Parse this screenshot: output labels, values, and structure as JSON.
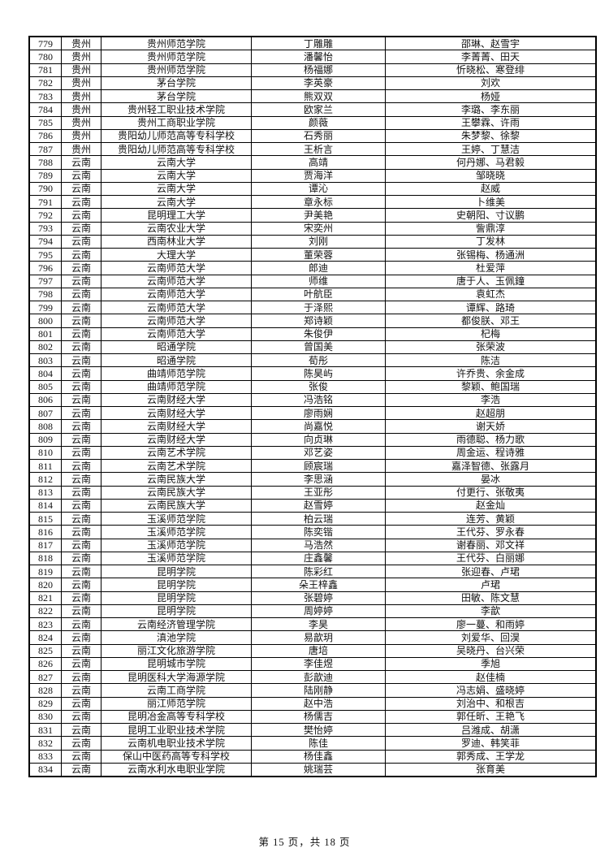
{
  "footer": {
    "text": "第 15 页，共 18 页"
  },
  "table": {
    "rows": [
      [
        "779",
        "贵州",
        "贵州师范学院",
        "丁雕雕",
        "邵琳、赵雪宇"
      ],
      [
        "780",
        "贵州",
        "贵州师范学院",
        "潘馨怡",
        "李菁菁、田天"
      ],
      [
        "781",
        "贵州",
        "贵州师范学院",
        "杨福娜",
        "忻晓松、寒登绯"
      ],
      [
        "782",
        "贵州",
        "茅台学院",
        "李英豪",
        "刘欢"
      ],
      [
        "783",
        "贵州",
        "茅台学院",
        "熊双双",
        "杨娅"
      ],
      [
        "784",
        "贵州",
        "贵州轻工职业技术学院",
        "欧家兰",
        "李璐、李东丽"
      ],
      [
        "785",
        "贵州",
        "贵州工商职业学院",
        "颜薇",
        "王攀霖、许雨"
      ],
      [
        "786",
        "贵州",
        "贵阳幼儿师范高等专科学校",
        "石秀丽",
        "朱梦黎、徐黎"
      ],
      [
        "787",
        "贵州",
        "贵阳幼儿师范高等专科学校",
        "王析言",
        "王婷、丁慧洁"
      ],
      [
        "788",
        "云南",
        "云南大学",
        "高靖",
        "何丹娜、马君毅"
      ],
      [
        "789",
        "云南",
        "云南大学",
        "贾海洋",
        "邹晓晓"
      ],
      [
        "790",
        "云南",
        "云南大学",
        "谭沁",
        "赵威"
      ],
      [
        "791",
        "云南",
        "云南大学",
        "章永标",
        "卜维美"
      ],
      [
        "792",
        "云南",
        "昆明理工大学",
        "尹美艳",
        "史朝阳、寸议鹏"
      ],
      [
        "793",
        "云南",
        "云南农业大学",
        "宋奕州",
        "訾鼎淳"
      ],
      [
        "794",
        "云南",
        "西南林业大学",
        "刘刚",
        "丁发林"
      ],
      [
        "795",
        "云南",
        "大理大学",
        "董荣蓉",
        "张锡梅、杨通洲"
      ],
      [
        "796",
        "云南",
        "云南师范大学",
        "郎迪",
        "杜爱萍"
      ],
      [
        "797",
        "云南",
        "云南师范大学",
        "师维",
        "唐于人、玉佩鐘"
      ],
      [
        "798",
        "云南",
        "云南师范大学",
        "叶航臣",
        "袁虹杰"
      ],
      [
        "799",
        "云南",
        "云南师范大学",
        "于泽熙",
        "谭辉、路琦"
      ],
      [
        "800",
        "云南",
        "云南师范大学",
        "郑诗颖",
        "都俊朕、邓王"
      ],
      [
        "801",
        "云南",
        "云南师范大学",
        "朱俊伊",
        "杞梅"
      ],
      [
        "802",
        "云南",
        "昭通学院",
        "曾国美",
        "张荣波"
      ],
      [
        "803",
        "云南",
        "昭通学院",
        "荀彤",
        "陈洁"
      ],
      [
        "804",
        "云南",
        "曲靖师范学院",
        "陈昊屿",
        "许乔贵、余金成"
      ],
      [
        "805",
        "云南",
        "曲靖师范学院",
        "张俊",
        "黎颖、鲍国瑞"
      ],
      [
        "806",
        "云南",
        "云南财经大学",
        "冯浩铭",
        "李浩"
      ],
      [
        "807",
        "云南",
        "云南财经大学",
        "廖雨娴",
        "赵超朋"
      ],
      [
        "808",
        "云南",
        "云南财经大学",
        "尚嘉悦",
        "谢天娇"
      ],
      [
        "809",
        "云南",
        "云南财经大学",
        "向贞琳",
        "雨德聪、杨力歌"
      ],
      [
        "810",
        "云南",
        "云南艺术学院",
        "邓艺姿",
        "周金运、程诗雅"
      ],
      [
        "811",
        "云南",
        "云南艺术学院",
        "顾宸瑞",
        "嘉泽智德、张露月"
      ],
      [
        "812",
        "云南",
        "云南民族大学",
        "李思涵",
        "晏冰"
      ],
      [
        "813",
        "云南",
        "云南民族大学",
        "王亚彤",
        "付更行、张敬夷"
      ],
      [
        "814",
        "云南",
        "云南民族大学",
        "赵雪婷",
        "赵金灿"
      ],
      [
        "815",
        "云南",
        "玉溪师范学院",
        "柏云瑞",
        "连芳、黄颖"
      ],
      [
        "816",
        "云南",
        "玉溪师范学院",
        "陈奕锴",
        "王代芬、罗永春"
      ],
      [
        "817",
        "云南",
        "玉溪师范学院",
        "马浩然",
        "谢春丽、邓文祥"
      ],
      [
        "818",
        "云南",
        "玉溪师范学院",
        "庄鑫馨",
        "王代芬、白丽娜"
      ],
      [
        "819",
        "云南",
        "昆明学院",
        "陈彩红",
        "张迎春、卢珺"
      ],
      [
        "820",
        "云南",
        "昆明学院",
        "朵王梓鑫",
        "卢珺"
      ],
      [
        "821",
        "云南",
        "昆明学院",
        "张碧婷",
        "田敏、陈文慧"
      ],
      [
        "822",
        "云南",
        "昆明学院",
        "周婷婷",
        "李歆"
      ],
      [
        "823",
        "云南",
        "云南经济管理学院",
        "李昊",
        "廖一蔓、和雨婷"
      ],
      [
        "824",
        "云南",
        "滇池学院",
        "易歆玥",
        "刘爱华、回淏"
      ],
      [
        "825",
        "云南",
        "丽江文化旅游学院",
        "唐培",
        "吴晓丹、台兴荣"
      ],
      [
        "826",
        "云南",
        "昆明城市学院",
        "李佳煜",
        "季旭"
      ],
      [
        "827",
        "云南",
        "昆明医科大学海源学院",
        "彭歆迪",
        "赵佳楠"
      ],
      [
        "828",
        "云南",
        "云南工商学院",
        "陆刚静",
        "冯志娟、盛晓婷"
      ],
      [
        "829",
        "云南",
        "丽江师范学院",
        "赵中浩",
        "刘治中、和根吉"
      ],
      [
        "830",
        "云南",
        "昆明冶金高等专科学校",
        "杨儒吉",
        "郭任昕、王艳飞"
      ],
      [
        "831",
        "云南",
        "昆明工业职业技术学院",
        "樊怡婷",
        "吕潍成、胡潇"
      ],
      [
        "832",
        "云南",
        "云南机电职业技术学院",
        "陈佳",
        "罗迪、韩笑菲"
      ],
      [
        "833",
        "云南",
        "保山中医药高等专科学校",
        "杨佳鑫",
        "郭秀成、王学龙"
      ],
      [
        "834",
        "云南",
        "云南水利水电职业学院",
        "姚瑞芸",
        "张育美"
      ]
    ]
  }
}
